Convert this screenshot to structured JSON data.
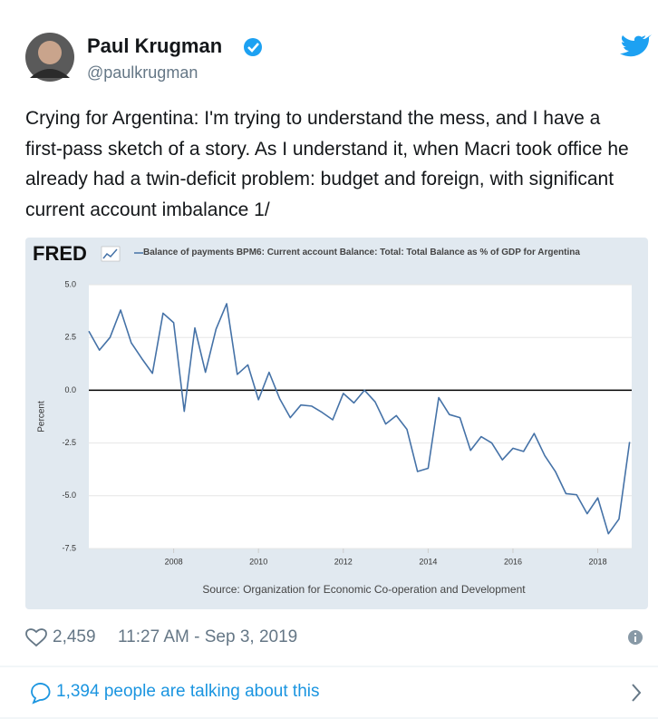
{
  "tweet": {
    "name": "Paul Krugman",
    "handle": "@paulkrugman",
    "text": "Crying for Argentina: I'm trying to understand the mess, and I have a first-pass sketch of a story. As I understand it, when Macri took office he already had a twin-deficit problem: budget and foreign, with significant current account imbalance 1/",
    "likes": "2,459",
    "timestamp": "11:27 AM - Sep 3, 2019",
    "conversation": "1,394 people are talking about this"
  },
  "chart_data": {
    "type": "line",
    "logo": "FRED",
    "ylabel": "Percent",
    "source": "Source: Organization for Economic Co-operation and Development",
    "x": [
      2006,
      2006.25,
      2006.5,
      2006.75,
      2007,
      2007.25,
      2007.5,
      2007.75,
      2008,
      2008.25,
      2008.5,
      2008.75,
      2009,
      2009.25,
      2009.5,
      2009.75,
      2010,
      2010.25,
      2010.5,
      2010.75,
      2011,
      2011.25,
      2011.5,
      2011.75,
      2012,
      2012.25,
      2012.5,
      2012.75,
      2013,
      2013.25,
      2013.5,
      2013.75,
      2014,
      2014.25,
      2014.5,
      2014.75,
      2015,
      2015.25,
      2015.5,
      2015.75,
      2016,
      2016.25,
      2016.5,
      2016.75,
      2017,
      2017.25,
      2017.5,
      2017.75,
      2018,
      2018.25,
      2018.5,
      2018.75
    ],
    "series": [
      {
        "name": "Balance of payments BPM6: Current account Balance: Total: Total Balance as % of GDP for Argentina",
        "color": "#4572a7",
        "values": [
          2.8,
          1.9,
          2.5,
          3.8,
          2.25,
          1.5,
          0.8,
          3.65,
          3.2,
          -1.0,
          2.95,
          0.85,
          2.9,
          4.1,
          0.75,
          1.2,
          -0.45,
          0.85,
          -0.4,
          -1.3,
          -0.7,
          -0.75,
          -1.05,
          -1.4,
          -0.15,
          -0.6,
          0.0,
          -0.55,
          -1.6,
          -1.2,
          -1.85,
          -3.85,
          -3.7,
          -0.35,
          -1.15,
          -1.3,
          -2.85,
          -2.2,
          -2.5,
          -3.3,
          -2.75,
          -2.9,
          -2.05,
          -3.1,
          -3.85,
          -4.9,
          -4.95,
          -5.85,
          -5.1,
          -6.8,
          -6.1,
          -2.45
        ]
      }
    ],
    "xlim": [
      2006,
      2018.8
    ],
    "xticks": [
      2008,
      2010,
      2012,
      2014,
      2016,
      2018
    ],
    "ylim": [
      -7.5,
      5
    ],
    "yticks": [
      {
        "value": 5,
        "label": "5.0"
      },
      {
        "value": 2.5,
        "label": "2.5"
      },
      {
        "value": 0,
        "label": "0.0"
      },
      {
        "value": -2.5,
        "label": "-2.5"
      },
      {
        "value": -5,
        "label": "-5.0"
      },
      {
        "value": -7.5,
        "label": "-7.5"
      }
    ],
    "grid": true,
    "zero_line": true
  }
}
